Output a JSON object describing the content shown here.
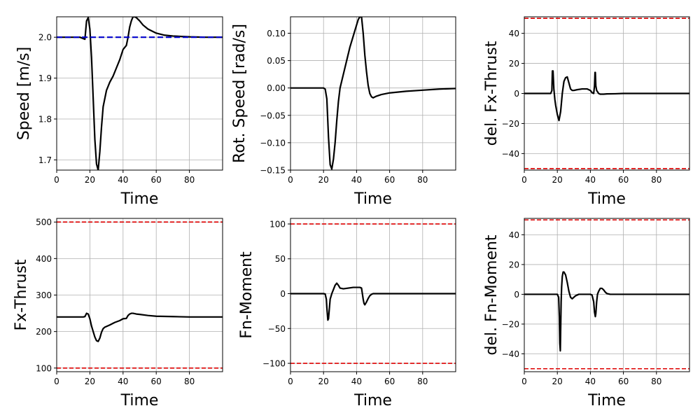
{
  "chart_data": [
    {
      "type": "line",
      "ylabel": "Speed [m/s]",
      "xlabel": "Time",
      "xlim": [
        0,
        100
      ],
      "ylim": [
        1.675,
        2.05
      ],
      "xticks": [
        0,
        20,
        40,
        60,
        80
      ],
      "yticks": [
        1.7,
        1.8,
        1.9,
        2.0
      ],
      "ytick_labels": [
        "1.7",
        "1.8",
        "1.9",
        "2.0"
      ],
      "grid": true,
      "series": [
        {
          "style": "solid",
          "color": "#000000",
          "x": [
            0,
            14,
            17,
            18,
            19,
            20,
            21,
            22,
            23,
            24,
            25,
            26,
            27,
            28,
            30,
            32,
            34,
            36,
            38,
            40,
            42,
            43,
            44,
            45,
            46,
            47,
            48,
            50,
            52,
            55,
            60,
            65,
            70,
            80,
            90,
            100
          ],
          "y": [
            2.0,
            2.0,
            1.995,
            2.04,
            2.048,
            2.02,
            1.95,
            1.85,
            1.75,
            1.69,
            1.675,
            1.72,
            1.78,
            1.83,
            1.87,
            1.89,
            1.905,
            1.925,
            1.945,
            1.97,
            1.98,
            2.0,
            2.025,
            2.04,
            2.05,
            2.05,
            2.048,
            2.04,
            2.03,
            2.02,
            2.01,
            2.005,
            2.003,
            2.001,
            2.0,
            2.0
          ]
        },
        {
          "style": "dashed",
          "color": "#0000cc",
          "x": [
            0,
            100
          ],
          "y": [
            2.0,
            2.0
          ]
        }
      ]
    },
    {
      "type": "line",
      "ylabel": "Rot. Speed [rad/s]",
      "xlabel": "Time",
      "xlim": [
        0,
        100
      ],
      "ylim": [
        -0.15,
        0.13
      ],
      "xticks": [
        0,
        20,
        40,
        60,
        80
      ],
      "yticks": [
        -0.15,
        -0.1,
        -0.05,
        0.0,
        0.05,
        0.1
      ],
      "ytick_labels": [
        "−0.15",
        "−0.10",
        "−0.05",
        "0.00",
        "0.05",
        "0.10"
      ],
      "grid": true,
      "series": [
        {
          "style": "solid",
          "color": "#000000",
          "x": [
            0,
            20,
            21,
            22,
            23,
            24,
            25,
            26,
            27,
            28,
            29,
            30,
            32,
            34,
            36,
            38,
            40,
            41,
            42,
            43,
            44,
            45,
            46,
            47,
            48,
            49,
            50,
            52,
            55,
            60,
            70,
            80,
            90,
            100
          ],
          "y": [
            0.0,
            0.0,
            -0.002,
            -0.02,
            -0.09,
            -0.14,
            -0.148,
            -0.13,
            -0.1,
            -0.06,
            -0.025,
            0.0,
            0.025,
            0.05,
            0.075,
            0.095,
            0.115,
            0.125,
            0.13,
            0.13,
            0.1,
            0.06,
            0.03,
            0.005,
            -0.01,
            -0.016,
            -0.018,
            -0.015,
            -0.012,
            -0.009,
            -0.006,
            -0.004,
            -0.002,
            -0.001
          ]
        }
      ]
    },
    {
      "type": "line",
      "ylabel": "del. Fx-Thrust",
      "xlabel": "Time",
      "xlim": [
        0,
        100
      ],
      "ylim": [
        -51,
        51
      ],
      "xticks": [
        0,
        20,
        40,
        60,
        80
      ],
      "yticks": [
        -40,
        -20,
        0,
        20,
        40
      ],
      "ytick_labels": [
        "−40",
        "−20",
        "0",
        "20",
        "40"
      ],
      "grid": true,
      "series": [
        {
          "style": "solid",
          "color": "#000000",
          "x": [
            0,
            14,
            16,
            16.7,
            17,
            17.4,
            17.9,
            18.5,
            19,
            20,
            21,
            22,
            23,
            24,
            25,
            26,
            27,
            28,
            29,
            30,
            32,
            35,
            38,
            40,
            41,
            42,
            42.5,
            42.8,
            43,
            43.3,
            43.8,
            45,
            46,
            48,
            50,
            55,
            60,
            70,
            80,
            90,
            100
          ],
          "y": [
            0,
            0,
            0,
            2,
            15,
            15,
            3,
            -4,
            -8,
            -14,
            -18,
            -12,
            0,
            8,
            10.5,
            11,
            7,
            3,
            2,
            2,
            2.5,
            3,
            3,
            2,
            0.5,
            0,
            5,
            14,
            14,
            5,
            2,
            0,
            -0.5,
            -0.5,
            -0.3,
            -0.2,
            0,
            0,
            0,
            0,
            0
          ]
        },
        {
          "style": "dashed",
          "color": "#dd0000",
          "x": [
            0,
            100
          ],
          "y": [
            50,
            50
          ]
        },
        {
          "style": "dashed",
          "color": "#dd0000",
          "x": [
            0,
            100
          ],
          "y": [
            -50,
            -50
          ]
        }
      ]
    },
    {
      "type": "line",
      "ylabel": "Fx-Thrust",
      "xlabel": "Time",
      "xlim": [
        0,
        100
      ],
      "ylim": [
        90,
        510
      ],
      "xticks": [
        0,
        20,
        40,
        60,
        80
      ],
      "yticks": [
        100,
        200,
        300,
        400,
        500
      ],
      "ytick_labels": [
        "100",
        "200",
        "300",
        "400",
        "500"
      ],
      "grid": true,
      "series": [
        {
          "style": "solid",
          "color": "#000000",
          "x": [
            0,
            16,
            17,
            18,
            19,
            20,
            21,
            22,
            23,
            24,
            25,
            26,
            27,
            28,
            29,
            30,
            32,
            35,
            38,
            40,
            42,
            43,
            44,
            45,
            46,
            47,
            48,
            50,
            55,
            60,
            70,
            80,
            90,
            100
          ],
          "y": [
            240,
            240,
            241,
            250,
            248,
            235,
            215,
            200,
            185,
            175,
            173,
            182,
            198,
            208,
            212,
            214,
            218,
            225,
            230,
            235,
            236,
            244,
            248,
            250,
            250,
            249,
            248,
            247,
            244,
            242,
            241,
            240,
            240,
            240
          ]
        },
        {
          "style": "dashed",
          "color": "#dd0000",
          "x": [
            0,
            100
          ],
          "y": [
            500,
            500
          ]
        },
        {
          "style": "dashed",
          "color": "#dd0000",
          "x": [
            0,
            100
          ],
          "y": [
            100,
            100
          ]
        }
      ]
    },
    {
      "type": "line",
      "ylabel": "Fn-Moment",
      "xlabel": "Time",
      "xlim": [
        0,
        100
      ],
      "ylim": [
        -112,
        108
      ],
      "xticks": [
        0,
        20,
        40,
        60,
        80
      ],
      "yticks": [
        -100,
        -50,
        0,
        50,
        100
      ],
      "ytick_labels": [
        "−100",
        "−50",
        "0",
        "50",
        "100"
      ],
      "grid": true,
      "series": [
        {
          "style": "solid",
          "color": "#000000",
          "x": [
            0,
            20,
            21,
            21.7,
            22,
            22.6,
            23,
            23.5,
            24,
            25,
            26,
            27,
            28,
            29,
            30,
            32,
            35,
            38,
            40,
            42,
            43,
            43.5,
            44,
            44.5,
            45,
            46,
            47,
            48,
            49,
            50,
            52,
            55,
            60,
            70,
            80,
            90,
            100
          ],
          "y": [
            0,
            0,
            -0.5,
            -8,
            -20,
            -38,
            -36,
            -22,
            -8,
            0,
            6,
            12,
            15,
            12,
            8,
            7,
            8,
            9,
            9,
            9,
            8,
            0,
            -8,
            -14,
            -16,
            -12,
            -7,
            -3,
            -1,
            0,
            0,
            0,
            0,
            0,
            0,
            0,
            0
          ]
        },
        {
          "style": "dashed",
          "color": "#dd0000",
          "x": [
            0,
            100
          ],
          "y": [
            100,
            100
          ]
        },
        {
          "style": "dashed",
          "color": "#dd0000",
          "x": [
            0,
            100
          ],
          "y": [
            -100,
            -100
          ]
        }
      ]
    },
    {
      "type": "line",
      "ylabel": "del. Fn-Moment",
      "xlabel": "Time",
      "xlim": [
        0,
        100
      ],
      "ylim": [
        -52,
        51
      ],
      "xticks": [
        0,
        20,
        40,
        60,
        80
      ],
      "yticks": [
        -40,
        -20,
        0,
        20,
        40
      ],
      "ytick_labels": [
        "−40",
        "−20",
        "0",
        "20",
        "40"
      ],
      "grid": true,
      "series": [
        {
          "style": "solid",
          "color": "#000000",
          "x": [
            0,
            20,
            20.8,
            21.2,
            21.5,
            21.8,
            22,
            22.3,
            22.6,
            23,
            23.5,
            24,
            25,
            26,
            27,
            28,
            29,
            30,
            31,
            33,
            35,
            40,
            41,
            42,
            42.5,
            43,
            43.3,
            43.8,
            44.3,
            45,
            46,
            47,
            48,
            49,
            50,
            52,
            55,
            60,
            70,
            80,
            90,
            100
          ],
          "y": [
            0,
            0,
            -2,
            -15,
            -33,
            -38,
            -25,
            -5,
            5,
            12,
            15,
            15,
            13,
            8,
            2,
            -2,
            -3,
            -2,
            -1,
            0,
            0,
            0,
            -0.5,
            -5,
            -12,
            -15,
            -13,
            -5,
            0,
            2,
            4,
            4,
            3,
            1.5,
            0.5,
            0,
            0,
            0,
            0,
            0,
            0,
            0
          ]
        },
        {
          "style": "dashed",
          "color": "#dd0000",
          "x": [
            0,
            100
          ],
          "y": [
            50,
            50
          ]
        },
        {
          "style": "dashed",
          "color": "#dd0000",
          "x": [
            0,
            100
          ],
          "y": [
            -50,
            -50
          ]
        }
      ]
    }
  ]
}
